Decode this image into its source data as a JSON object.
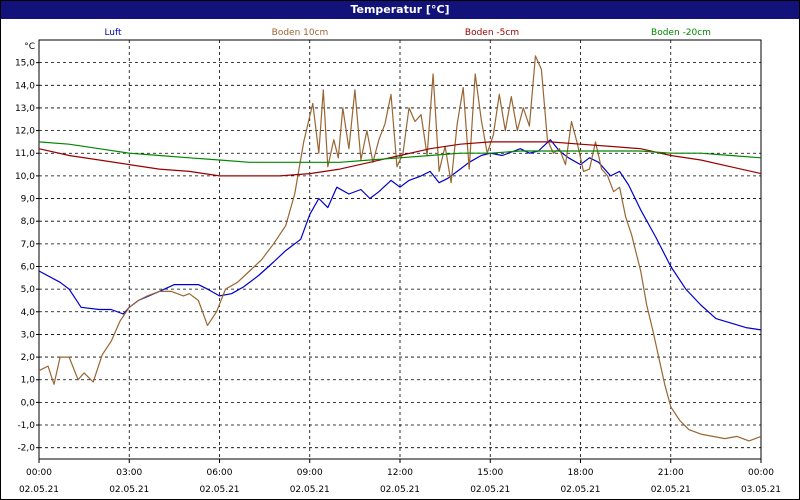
{
  "window": {
    "title": "Temperatur [°C]"
  },
  "chart_data": {
    "type": "line",
    "title": "Temperatur [°C]",
    "ylabel": "°C",
    "ylim": [
      -2.5,
      16
    ],
    "yticks": [
      15,
      14,
      13,
      12,
      11,
      10,
      9,
      8,
      7,
      6,
      5,
      4,
      3,
      2,
      1,
      0,
      -1,
      -2
    ],
    "yticklabels": [
      "15,0",
      "14,0",
      "13,0",
      "12,0",
      "11,0",
      "10,0",
      "9,0",
      "8,0",
      "7,0",
      "6,0",
      "5,0",
      "4,0",
      "3,0",
      "2,0",
      "1,0",
      "0,0",
      "-1,0",
      "-2,0"
    ],
    "xlim": [
      0,
      24
    ],
    "xticks": [
      0,
      3,
      6,
      9,
      12,
      15,
      18,
      21,
      24
    ],
    "xticklabels": [
      [
        "00:00",
        "02.05.21"
      ],
      [
        "03:00",
        "02.05.21"
      ],
      [
        "06:00",
        "02.05.21"
      ],
      [
        "09:00",
        "02.05.21"
      ],
      [
        "12:00",
        "02.05.21"
      ],
      [
        "15:00",
        "02.05.21"
      ],
      [
        "18:00",
        "02.05.21"
      ],
      [
        "21:00",
        "02.05.21"
      ],
      [
        "00:00",
        "03.05.21"
      ]
    ],
    "grid": true,
    "legend": "top",
    "series": [
      {
        "name": "Luft",
        "color": "#0000cc",
        "x": [
          0,
          0.7,
          1,
          1.4,
          2,
          2.4,
          2.8,
          3,
          3.3,
          4,
          4.5,
          5,
          5.3,
          5.6,
          6,
          6.4,
          6.8,
          7.3,
          7.8,
          8.2,
          8.7,
          9,
          9.3,
          9.6,
          9.9,
          10.3,
          10.7,
          11,
          11.3,
          11.7,
          12,
          12.3,
          12.7,
          13,
          13.3,
          13.6,
          14,
          14.3,
          14.7,
          15,
          15.4,
          15.8,
          16,
          16.3,
          16.6,
          17,
          17.3,
          17.6,
          18,
          18.3,
          18.6,
          19,
          19.3,
          19.6,
          20,
          20.5,
          21,
          21.5,
          22,
          22.5,
          23,
          23.5,
          24
        ],
        "y": [
          5.8,
          5.3,
          5.0,
          4.2,
          4.1,
          4.1,
          3.9,
          4.2,
          4.5,
          4.9,
          5.2,
          5.2,
          5.2,
          5.0,
          4.7,
          4.8,
          5.1,
          5.6,
          6.2,
          6.7,
          7.2,
          8.3,
          9.0,
          8.6,
          9.5,
          9.2,
          9.4,
          9.0,
          9.3,
          9.8,
          9.5,
          9.8,
          10.0,
          10.2,
          9.7,
          9.9,
          10.3,
          10.6,
          10.9,
          11.0,
          10.9,
          11.1,
          11.2,
          11.0,
          11.1,
          11.6,
          11.1,
          10.8,
          10.5,
          10.8,
          10.6,
          10.0,
          10.2,
          9.6,
          8.5,
          7.3,
          6.0,
          5.0,
          4.3,
          3.7,
          3.5,
          3.3,
          3.2
        ]
      },
      {
        "name": "Boden 10cm",
        "color": "#996633",
        "x": [
          0,
          0.3,
          0.5,
          0.7,
          1,
          1.3,
          1.5,
          1.8,
          2.1,
          2.4,
          2.7,
          3,
          3.3,
          3.6,
          4,
          4.4,
          4.8,
          5,
          5.3,
          5.6,
          5.9,
          6.2,
          6.6,
          7,
          7.4,
          7.8,
          8.2,
          8.5,
          8.8,
          9.1,
          9.3,
          9.45,
          9.6,
          9.8,
          9.95,
          10.1,
          10.3,
          10.5,
          10.7,
          10.9,
          11.1,
          11.3,
          11.5,
          11.7,
          11.9,
          12.1,
          12.3,
          12.5,
          12.7,
          12.9,
          13.1,
          13.3,
          13.5,
          13.7,
          13.9,
          14.1,
          14.3,
          14.5,
          14.7,
          14.9,
          15.1,
          15.3,
          15.5,
          15.7,
          15.9,
          16.1,
          16.3,
          16.5,
          16.7,
          16.9,
          17.1,
          17.3,
          17.5,
          17.7,
          17.9,
          18.1,
          18.3,
          18.5,
          18.7,
          18.9,
          19.1,
          19.3,
          19.5,
          19.7,
          20,
          20.2,
          20.4,
          20.6,
          20.8,
          21,
          21.3,
          21.6,
          22,
          22.4,
          22.8,
          23.2,
          23.6,
          24
        ],
        "y": [
          1.4,
          1.6,
          0.8,
          2.0,
          2.0,
          1.0,
          1.3,
          0.9,
          2.1,
          2.7,
          3.6,
          4.2,
          4.5,
          4.7,
          4.9,
          4.9,
          4.7,
          4.8,
          4.5,
          3.4,
          4.0,
          5.0,
          5.3,
          5.8,
          6.3,
          7.0,
          7.8,
          9.2,
          11.5,
          13.2,
          11.0,
          13.8,
          10.4,
          11.6,
          10.8,
          13.0,
          11.2,
          13.8,
          10.7,
          12.0,
          10.6,
          11.6,
          12.3,
          13.6,
          10.4,
          11.0,
          13.0,
          12.4,
          12.7,
          10.9,
          14.5,
          10.2,
          11.3,
          9.7,
          12.3,
          13.9,
          10.3,
          14.5,
          12.5,
          11.0,
          11.8,
          13.6,
          12.0,
          13.5,
          12.0,
          13.0,
          12.2,
          15.3,
          14.7,
          11.6,
          11.0,
          11.2,
          10.5,
          12.4,
          11.4,
          10.2,
          10.3,
          11.5,
          10.3,
          10.0,
          9.3,
          9.5,
          8.2,
          7.4,
          5.8,
          4.3,
          3.2,
          2.0,
          0.8,
          -0.2,
          -0.8,
          -1.2,
          -1.4,
          -1.5,
          -1.6,
          -1.5,
          -1.7,
          -1.5
        ]
      },
      {
        "name": "Boden -5cm",
        "color": "#990000",
        "x": [
          0,
          1,
          2,
          3,
          4,
          5,
          6,
          7,
          8,
          9,
          10,
          11,
          12,
          13,
          14,
          15,
          16,
          17,
          18,
          19,
          20,
          21,
          22,
          23,
          24
        ],
        "y": [
          11.2,
          10.9,
          10.7,
          10.5,
          10.3,
          10.2,
          10.0,
          10.0,
          10.0,
          10.1,
          10.3,
          10.6,
          10.9,
          11.2,
          11.4,
          11.5,
          11.5,
          11.5,
          11.4,
          11.3,
          11.2,
          10.9,
          10.7,
          10.4,
          10.1
        ]
      },
      {
        "name": "Boden -20cm",
        "color": "#008800",
        "x": [
          0,
          1,
          2,
          3,
          4,
          5,
          6,
          7,
          8,
          9,
          10,
          11,
          12,
          13,
          14,
          15,
          16,
          17,
          18,
          19,
          20,
          21,
          22,
          23,
          24
        ],
        "y": [
          11.5,
          11.4,
          11.2,
          11.0,
          10.9,
          10.8,
          10.7,
          10.6,
          10.6,
          10.6,
          10.6,
          10.7,
          10.8,
          10.9,
          11.0,
          11.0,
          11.1,
          11.1,
          11.1,
          11.1,
          11.1,
          11.0,
          11.0,
          10.9,
          10.8
        ]
      }
    ]
  }
}
